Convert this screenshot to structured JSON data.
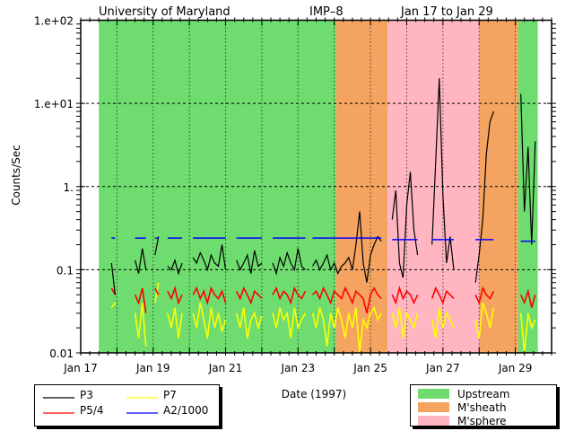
{
  "chart_data": {
    "type": "line",
    "title_parts": [
      "University of Maryland",
      "IMP–8",
      "Jan 17 to Jan 29"
    ],
    "xlabel": "Date (1997)",
    "ylabel": "Counts/Sec",
    "yscale": "log",
    "ylim": [
      0.01,
      100
    ],
    "xlim_days": [
      17,
      30
    ],
    "x_ticks": [
      {
        "day": 17,
        "label": "Jan 17"
      },
      {
        "day": 19,
        "label": "Jan 19"
      },
      {
        "day": 21,
        "label": "Jan 21"
      },
      {
        "day": 23,
        "label": "Jan 23"
      },
      {
        "day": 25,
        "label": "Jan 25"
      },
      {
        "day": 27,
        "label": "Jan 27"
      },
      {
        "day": 29,
        "label": "Jan 29"
      }
    ],
    "y_ticks": [
      {
        "value": 100,
        "label": "1.e+02"
      },
      {
        "value": 10,
        "label": "1.e+01"
      },
      {
        "value": 1,
        "label": "1."
      },
      {
        "value": 0.1,
        "label": "0.1"
      },
      {
        "value": 0.01,
        "label": "0.01"
      }
    ],
    "grid": true,
    "regions": [
      {
        "type": "Upstream",
        "from": 17.5,
        "to": 24.05
      },
      {
        "type": "M'sheath",
        "from": 24.05,
        "to": 25.47
      },
      {
        "type": "M'sphere",
        "from": 25.47,
        "to": 28.0
      },
      {
        "type": "M'sheath",
        "from": 28.0,
        "to": 29.08
      },
      {
        "type": "Upstream",
        "from": 29.08,
        "to": 29.62
      }
    ],
    "region_legend": [
      {
        "label": "Upstream",
        "color": "#6edc6e"
      },
      {
        "label": "M'sheath",
        "color": "#f4a460"
      },
      {
        "label": "M'sphere",
        "color": "#ffb6c1"
      }
    ],
    "series_legend": [
      {
        "key": "p3",
        "label": "P3",
        "color": "#000000"
      },
      {
        "key": "p7",
        "label": "P7",
        "color": "#ffff00"
      },
      {
        "key": "p5",
        "label": "P5/4",
        "color": "#ff0000"
      },
      {
        "key": "a2",
        "label": "A2/1000",
        "color": "#0000ff"
      }
    ],
    "step_days": 0.1,
    "segments": [
      {
        "start": 17.85,
        "p3": [
          0.12,
          0.05
        ],
        "p5": [
          0.06,
          0.05
        ],
        "p7": [
          0.035,
          0.04
        ],
        "a2": 0.24
      },
      {
        "start": 18.5,
        "p3": [
          0.13,
          0.09,
          0.18,
          0.1
        ],
        "p5": [
          0.05,
          0.04,
          0.06,
          0.03
        ],
        "p7": [
          0.03,
          0.015,
          0.04,
          0.012
        ],
        "a2": 0.24
      },
      {
        "start": 19.05,
        "p3": [
          0.15,
          0.25
        ],
        "p5": [
          0.06,
          0.05
        ],
        "p7": [
          0.04,
          0.07
        ],
        "a2": 0.24
      },
      {
        "start": 19.4,
        "p3": [
          0.11,
          0.1,
          0.13,
          0.09,
          0.12
        ],
        "p5": [
          0.055,
          0.045,
          0.06,
          0.04,
          0.05
        ],
        "p7": [
          0.03,
          0.02,
          0.035,
          0.015,
          0.03
        ],
        "a2": 0.24
      },
      {
        "start": 20.1,
        "p3": [
          0.14,
          0.12,
          0.16,
          0.13,
          0.1,
          0.15,
          0.12,
          0.11,
          0.2,
          0.1
        ],
        "p5": [
          0.05,
          0.06,
          0.045,
          0.055,
          0.04,
          0.06,
          0.05,
          0.045,
          0.055,
          0.04
        ],
        "p7": [
          0.03,
          0.02,
          0.04,
          0.025,
          0.015,
          0.035,
          0.02,
          0.03,
          0.018,
          0.025
        ],
        "a2": 0.24
      },
      {
        "start": 21.3,
        "p3": [
          0.13,
          0.1,
          0.12,
          0.15,
          0.09,
          0.17,
          0.11,
          0.12
        ],
        "p5": [
          0.055,
          0.045,
          0.06,
          0.05,
          0.04,
          0.055,
          0.05,
          0.045
        ],
        "p7": [
          0.03,
          0.02,
          0.035,
          0.015,
          0.025,
          0.03,
          0.02,
          0.028
        ],
        "a2": 0.24
      },
      {
        "start": 22.3,
        "p3": [
          0.12,
          0.09,
          0.14,
          0.11,
          0.16,
          0.12,
          0.1,
          0.18,
          0.11,
          0.1
        ],
        "p5": [
          0.05,
          0.06,
          0.045,
          0.055,
          0.05,
          0.04,
          0.06,
          0.05,
          0.045,
          0.055
        ],
        "p7": [
          0.03,
          0.02,
          0.035,
          0.025,
          0.03,
          0.015,
          0.035,
          0.02,
          0.025,
          0.03
        ],
        "a2": 0.24
      },
      {
        "start": 23.4,
        "p3": [
          0.11,
          0.13,
          0.1,
          0.12,
          0.15,
          0.1,
          0.12,
          0.09,
          0.11,
          0.12,
          0.14,
          0.1,
          0.2,
          0.5,
          0.12,
          0.07,
          0.15,
          0.2,
          0.25,
          0.22
        ],
        "p5": [
          0.05,
          0.055,
          0.045,
          0.06,
          0.05,
          0.04,
          0.055,
          0.05,
          0.045,
          0.06,
          0.05,
          0.04,
          0.055,
          0.05,
          0.045,
          0.03,
          0.05,
          0.06,
          0.05,
          0.045
        ],
        "p7": [
          0.03,
          0.02,
          0.035,
          0.025,
          0.012,
          0.03,
          0.02,
          0.035,
          0.025,
          0.015,
          0.03,
          0.02,
          0.035,
          0.01,
          0.025,
          0.02,
          0.03,
          0.035,
          0.025,
          0.03
        ],
        "a2": 0.24
      },
      {
        "start": 25.6,
        "p3": [
          0.4,
          0.9,
          0.12,
          0.08,
          0.6,
          1.5,
          0.3,
          0.15
        ],
        "p5": [
          0.05,
          0.04,
          0.06,
          0.045,
          0.055,
          0.05,
          0.04,
          0.05
        ],
        "p7": [
          0.03,
          0.02,
          0.035,
          0.015,
          0.03,
          0.025,
          0.02,
          0.03
        ],
        "a2": 0.23
      },
      {
        "start": 26.7,
        "p3": [
          0.2,
          2.0,
          20,
          0.8,
          0.12,
          0.25,
          0.1
        ],
        "p5": [
          0.045,
          0.06,
          0.05,
          0.04,
          0.055,
          0.05,
          0.045
        ],
        "p7": [
          0.025,
          0.015,
          0.035,
          0.02,
          0.03,
          0.025,
          0.02
        ],
        "a2": 0.23
      },
      {
        "start": 27.9,
        "p3": [
          0.07,
          0.15,
          0.4,
          2.5,
          6.0,
          8.0
        ],
        "p5": [
          0.05,
          0.04,
          0.06,
          0.05,
          0.045,
          0.055
        ],
        "p7": [
          0.025,
          0.015,
          0.04,
          0.03,
          0.02,
          0.035
        ],
        "a2": 0.23
      },
      {
        "start": 29.15,
        "p3": [
          13,
          0.5,
          3.0,
          0.2,
          3.5
        ],
        "p5": [
          0.05,
          0.04,
          0.055,
          0.035,
          0.05
        ],
        "p7": [
          0.03,
          0.01,
          0.03,
          0.02,
          0.025
        ],
        "a2": 0.22
      }
    ]
  }
}
